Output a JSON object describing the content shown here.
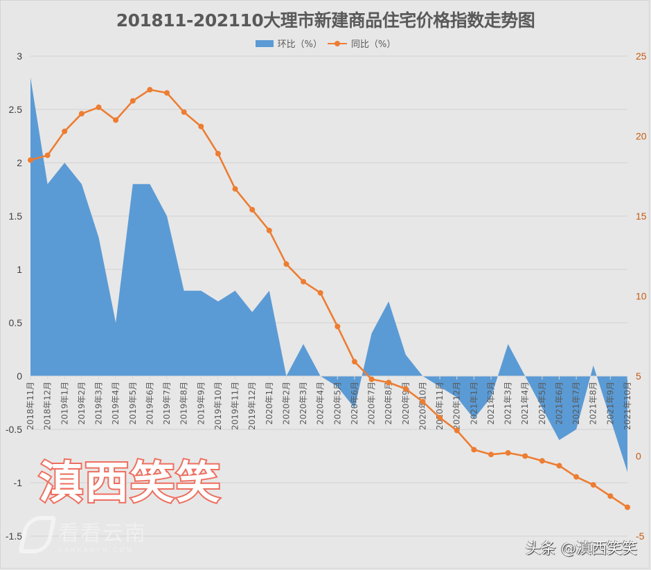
{
  "title": "201811-202110大理市新建商品住宅价格指数走势图",
  "legend": {
    "area_label": "环比（%）",
    "line_label": "同比（%）"
  },
  "colors": {
    "area": "#5b9bd5",
    "line": "#ed7d31",
    "background": "#e7e7e7",
    "gridline": "#d0d0d0",
    "left_axis_text": "#404040",
    "right_axis_text": "#c55a11"
  },
  "watermarks": {
    "big": "滇西笑笑",
    "logo_cn": "看看云南",
    "logo_en": "KANKANYN.COM",
    "toutiao": "头条 @滇西笑笑"
  },
  "chart_data": {
    "type": "area+line",
    "title": "201811-202110大理市新建商品住宅价格指数走势图",
    "xlabel": "",
    "ylabel_left": "",
    "ylabel_right": "",
    "categories": [
      "2018年11月",
      "2018年12月",
      "2019年1月",
      "2019年2月",
      "2019年3月",
      "2019年4月",
      "2019年5月",
      "2019年6月",
      "2019年7月",
      "2019年8月",
      "2019年9月",
      "2019年10月",
      "2019年11月",
      "2019年12月",
      "2020年1月",
      "2020年2月",
      "2020年3月",
      "2020年4月",
      "2020年5月",
      "2020年6月",
      "2020年7月",
      "2020年8月",
      "2020年9月",
      "2020年10月",
      "2020年11月",
      "2020年12月",
      "2021年1月",
      "2021年2月",
      "2021年3月",
      "2021年4月",
      "2021年5月",
      "2021年6月",
      "2021年7月",
      "2021年8月",
      "2021年9月",
      "2021年10月"
    ],
    "series": [
      {
        "name": "环比（%）",
        "type": "area",
        "axis": "left",
        "values": [
          2.8,
          1.8,
          2.0,
          1.8,
          1.3,
          0.5,
          1.8,
          1.8,
          1.5,
          0.8,
          0.8,
          0.7,
          0.8,
          0.6,
          0.8,
          0.0,
          0.3,
          0.0,
          -0.1,
          -0.3,
          0.4,
          0.7,
          0.2,
          0.0,
          -0.1,
          -0.2,
          -0.4,
          -0.2,
          0.3,
          0.0,
          -0.3,
          -0.6,
          -0.5,
          0.1,
          -0.4,
          -0.9
        ]
      },
      {
        "name": "同比（%）",
        "type": "line",
        "axis": "right",
        "values": [
          18.5,
          18.8,
          20.3,
          21.4,
          21.8,
          21.0,
          22.2,
          22.9,
          22.7,
          21.5,
          20.6,
          18.9,
          16.7,
          15.4,
          14.1,
          12.0,
          10.9,
          10.2,
          8.1,
          5.9,
          4.8,
          4.6,
          4.2,
          3.4,
          2.4,
          1.6,
          0.4,
          0.1,
          0.2,
          0.0,
          -0.3,
          -0.6,
          -1.3,
          -1.8,
          -2.5,
          -3.2
        ]
      }
    ],
    "left_axis": {
      "min": -1.5,
      "max": 3,
      "step": 0.5,
      "ticks": [
        "3",
        "2.5",
        "2",
        "1.5",
        "1",
        "0.5",
        "0",
        "-0.5",
        "-1",
        "-1.5"
      ]
    },
    "right_axis": {
      "min": -5,
      "max": 25,
      "step": 5,
      "ticks": [
        "25",
        "20",
        "15",
        "10",
        "5",
        "0",
        "-5"
      ]
    },
    "grid": true,
    "legend_position": "top"
  }
}
